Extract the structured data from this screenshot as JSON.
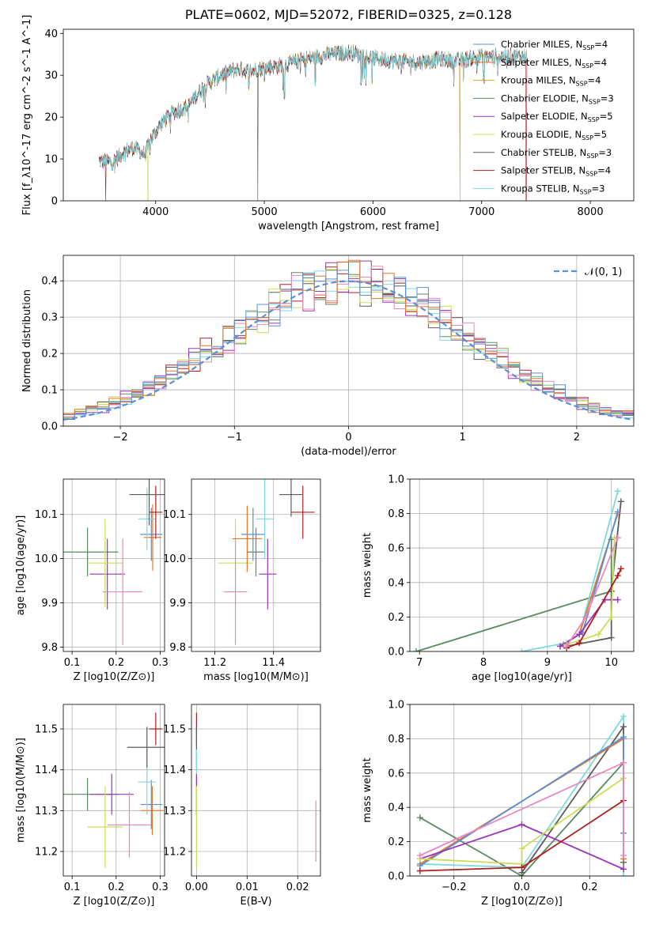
{
  "colors": [
    "#5b8fd6",
    "#e8762a",
    "#d4a418",
    "#5a8a62",
    "#9b35b8",
    "#ccdd55",
    "#5c5c5c",
    "#b01e1e",
    "#7bd9e0",
    "#e888c0",
    "#8c4a2e"
  ],
  "chart_data": [
    {
      "id": "spectrum",
      "type": "line",
      "title": "PLATE=0602, MJD=52072, FIBERID=0325, z=0.128",
      "xlabel": "wavelength [Angstrom, rest frame]",
      "ylabel": "Flux [f_λ10^-17 erg cm^-2 s^-1 A^-1]",
      "xlim": [
        3150,
        8400
      ],
      "ylim": [
        0,
        41
      ],
      "xticks": [
        "4000",
        "5000",
        "6000",
        "7000",
        "8000"
      ],
      "yticks": [
        "0",
        "10",
        "20",
        "30",
        "40"
      ],
      "legend_position": "top-right",
      "series": [
        {
          "name": "Chabrier MILES, N_SSP=4"
        },
        {
          "name": "Salpeter MILES, N_SSP=4"
        },
        {
          "name": "Kroupa MILES, N_SSP=4"
        },
        {
          "name": "Chabrier ELODIE, N_SSP=3"
        },
        {
          "name": "Salpeter ELODIE, N_SSP=5"
        },
        {
          "name": "Kroupa ELODIE, N_SSP=5"
        },
        {
          "name": "Chabrier STELIB, N_SSP=3"
        },
        {
          "name": "Salpeter STELIB, N_SSP=4"
        },
        {
          "name": "Kroupa STELIB, N_SSP=3"
        }
      ],
      "continuum_knots": [
        [
          3480,
          9.5
        ],
        [
          3600,
          9.2
        ],
        [
          3700,
          11.5
        ],
        [
          3800,
          12.8
        ],
        [
          3900,
          11
        ],
        [
          3950,
          14.5
        ],
        [
          4050,
          18.5
        ],
        [
          4150,
          21
        ],
        [
          4300,
          22.5
        ],
        [
          4350,
          24.5
        ],
        [
          4450,
          27.5
        ],
        [
          4600,
          30
        ],
        [
          4750,
          31.5
        ],
        [
          4850,
          31
        ],
        [
          5000,
          31.8
        ],
        [
          5200,
          32.5
        ],
        [
          5400,
          34
        ],
        [
          5600,
          35
        ],
        [
          5800,
          35.5
        ],
        [
          6000,
          34
        ],
        [
          6200,
          33.5
        ],
        [
          6400,
          33
        ],
        [
          6600,
          33.8
        ],
        [
          6800,
          33.5
        ],
        [
          7000,
          34.5
        ],
        [
          7200,
          34.5
        ],
        [
          7400,
          34.5
        ]
      ],
      "features": [
        {
          "x": 3540,
          "drop_to": 0,
          "series": 7
        },
        {
          "x": 3930,
          "drop_to": 0,
          "series": 5
        },
        {
          "x": 4940,
          "drop_to": 0,
          "series": 6
        },
        {
          "x": 5185,
          "drop_to": 24
        },
        {
          "x": 5890,
          "drop_to": 28
        },
        {
          "x": 6800,
          "drop_to": 0,
          "series": 2
        },
        {
          "x": 7410,
          "drop_to": 0,
          "series": 7
        },
        {
          "x": 7020,
          "drop_to": 28
        }
      ]
    },
    {
      "id": "residual-hist",
      "type": "histogram",
      "xlabel": "(data-model)/error",
      "ylabel": "Normed distribution",
      "xlim": [
        -2.5,
        2.5
      ],
      "ylim": [
        0,
        0.47
      ],
      "xticks": [
        "−2",
        "−1",
        "0",
        "1",
        "2"
      ],
      "yticks": [
        "0.0",
        "0.1",
        "0.2",
        "0.3",
        "0.4"
      ],
      "legend": "𝒩(0, 1)",
      "legend_position": "top-right",
      "bin_width": 0.1,
      "bin_start": -2.5
    },
    {
      "id": "age-vs-Z",
      "type": "errorbar",
      "xlabel": "Z [log10(Z/Z⊙)]",
      "ylabel": "age [log10(age/yr)]",
      "xlim": [
        0.08,
        0.31
      ],
      "ylim": [
        9.79,
        10.18
      ],
      "xticks": [
        "0.1",
        "0.2",
        "0.3"
      ],
      "yticks": [
        "9.8",
        "9.9",
        "10.0",
        "10.1"
      ],
      "points": [
        {
          "x": 0.135,
          "y": 10.015,
          "xerr": 0.07,
          "yerr": 0.055,
          "c": 3
        },
        {
          "x": 0.18,
          "y": 9.965,
          "xerr": 0.04,
          "yerr": 0.08,
          "c": 4
        },
        {
          "x": 0.175,
          "y": 9.99,
          "xerr": 0.04,
          "yerr": 0.1,
          "c": 5
        },
        {
          "x": 0.215,
          "y": 9.925,
          "xerr": 0.045,
          "yerr": 0.12,
          "c": 9
        },
        {
          "x": 0.283,
          "y": 10.048,
          "xerr": 0.02,
          "yerr": 0.075,
          "c": 1
        },
        {
          "x": 0.28,
          "y": 10.055,
          "xerr": 0.025,
          "yerr": 0.06,
          "c": 0
        },
        {
          "x": 0.27,
          "y": 10.09,
          "xerr": 0.02,
          "yerr": 0.07,
          "c": 8
        },
        {
          "x": 0.29,
          "y": 10.105,
          "xerr": 0.015,
          "yerr": 0.06,
          "c": 7
        },
        {
          "x": 0.275,
          "y": 10.145,
          "xerr": 0.045,
          "yerr": 0.07,
          "c": 6
        }
      ]
    },
    {
      "id": "age-vs-mass",
      "type": "errorbar",
      "xlabel": "mass [log10(M/M⊙)]",
      "ylabel": "",
      "xlim": [
        11.12,
        11.56
      ],
      "ylim": [
        9.79,
        10.18
      ],
      "xticks": [
        "11.2",
        "11.4"
      ],
      "yticks": [
        "9.8",
        "9.9",
        "10.0",
        "10.1"
      ],
      "points": [
        {
          "x": 11.27,
          "y": 9.99,
          "xerr": 0.06,
          "yerr": 0.1,
          "c": 5
        },
        {
          "x": 11.27,
          "y": 9.925,
          "xerr": 0.04,
          "yerr": 0.12,
          "c": 9
        },
        {
          "x": 11.34,
          "y": 10.015,
          "xerr": 0.03,
          "yerr": 0.055,
          "c": 3
        },
        {
          "x": 11.38,
          "y": 9.965,
          "xerr": 0.03,
          "yerr": 0.08,
          "c": 4
        },
        {
          "x": 11.31,
          "y": 10.045,
          "xerr": 0.05,
          "yerr": 0.075,
          "c": 1
        },
        {
          "x": 11.33,
          "y": 10.055,
          "xerr": 0.04,
          "yerr": 0.06,
          "c": 0
        },
        {
          "x": 11.37,
          "y": 10.09,
          "xerr": 0.03,
          "yerr": 0.09,
          "c": 8
        },
        {
          "x": 11.5,
          "y": 10.105,
          "xerr": 0.04,
          "yerr": 0.06,
          "c": 7
        },
        {
          "x": 11.46,
          "y": 10.145,
          "xerr": 0.04,
          "yerr": 0.05,
          "c": 6
        }
      ]
    },
    {
      "id": "mass-weight-vs-age",
      "type": "line",
      "xlabel": "age [log10(age/yr)]",
      "ylabel": "mass weight",
      "xlim": [
        6.85,
        10.35
      ],
      "ylim": [
        0,
        1
      ],
      "xticks": [
        "7",
        "8",
        "9",
        "10"
      ],
      "yticks": [
        "0.0",
        "0.2",
        "0.4",
        "0.6",
        "0.8",
        "1.0"
      ],
      "series": [
        {
          "c": 3,
          "points": [
            [
              6.95,
              0.0
            ],
            [
              10.0,
              0.35
            ],
            [
              10.0,
              0.65
            ]
          ]
        },
        {
          "c": 8,
          "points": [
            [
              8.6,
              0.0
            ],
            [
              9.3,
              0.05
            ],
            [
              9.5,
              0.1
            ],
            [
              10.1,
              0.93
            ]
          ]
        },
        {
          "c": 6,
          "points": [
            [
              9.3,
              0.03
            ],
            [
              10.0,
              0.08
            ],
            [
              10.0,
              0.35
            ],
            [
              10.15,
              0.87
            ]
          ]
        },
        {
          "c": 1,
          "points": [
            [
              9.2,
              0.03
            ],
            [
              9.5,
              0.1
            ],
            [
              10.1,
              0.8
            ]
          ]
        },
        {
          "c": 0,
          "points": [
            [
              9.25,
              0.04
            ],
            [
              9.55,
              0.11
            ],
            [
              10.1,
              0.81
            ]
          ]
        },
        {
          "c": 4,
          "points": [
            [
              9.2,
              0.03
            ],
            [
              9.5,
              0.1
            ],
            [
              9.9,
              0.3
            ],
            [
              10.1,
              0.3
            ]
          ]
        },
        {
          "c": 5,
          "points": [
            [
              9.3,
              0.04
            ],
            [
              9.8,
              0.1
            ],
            [
              10.0,
              0.2
            ],
            [
              10.05,
              0.66
            ]
          ]
        },
        {
          "c": 7,
          "points": [
            [
              9.3,
              0.02
            ],
            [
              9.5,
              0.05
            ],
            [
              10.1,
              0.44
            ],
            [
              10.15,
              0.48
            ]
          ]
        },
        {
          "c": 9,
          "points": [
            [
              9.3,
              0.03
            ],
            [
              9.6,
              0.2
            ],
            [
              10.1,
              0.66
            ]
          ]
        }
      ]
    },
    {
      "id": "mass-vs-Z",
      "type": "errorbar",
      "xlabel": "Z [log10(Z/Z⊙)]",
      "ylabel": "mass [log10(M/M⊙)]",
      "xlim": [
        0.08,
        0.31
      ],
      "ylim": [
        11.14,
        11.56
      ],
      "xticks": [
        "0.1",
        "0.2",
        "0.3"
      ],
      "yticks": [
        "11.2",
        "11.3",
        "11.4",
        "11.5"
      ],
      "points": [
        {
          "x": 0.135,
          "y": 11.34,
          "xerr": 0.07,
          "yerr": 0.04,
          "c": 3
        },
        {
          "x": 0.19,
          "y": 11.34,
          "xerr": 0.05,
          "yerr": 0.05,
          "c": 4
        },
        {
          "x": 0.175,
          "y": 11.26,
          "xerr": 0.04,
          "yerr": 0.1,
          "c": 5
        },
        {
          "x": 0.23,
          "y": 11.265,
          "xerr": 0.05,
          "yerr": 0.08,
          "c": 9
        },
        {
          "x": 0.282,
          "y": 11.3,
          "xerr": 0.025,
          "yerr": 0.06,
          "c": 1
        },
        {
          "x": 0.28,
          "y": 11.315,
          "xerr": 0.025,
          "yerr": 0.06,
          "c": 0
        },
        {
          "x": 0.27,
          "y": 11.37,
          "xerr": 0.02,
          "yerr": 0.08,
          "c": 8
        },
        {
          "x": 0.29,
          "y": 11.5,
          "xerr": 0.015,
          "yerr": 0.04,
          "c": 7
        },
        {
          "x": 0.27,
          "y": 11.455,
          "xerr": 0.045,
          "yerr": 0.05,
          "c": 6
        }
      ]
    },
    {
      "id": "mass-vs-ebv",
      "type": "errorbar",
      "xlabel": "E(B-V)",
      "ylabel": "",
      "xlim": [
        -0.001,
        0.0245
      ],
      "ylim": [
        11.14,
        11.56
      ],
      "xticks": [
        "0.00",
        "0.01",
        "0.02"
      ],
      "yticks": [
        "11.2",
        "11.3",
        "11.4",
        "11.5"
      ],
      "points": [
        {
          "x": 0.0,
          "y": 11.5,
          "xerr": 0.0,
          "yerr": 0.04,
          "c": 7
        },
        {
          "x": 0.0,
          "y": 11.455,
          "xerr": 0.0,
          "yerr": 0.05,
          "c": 6
        },
        {
          "x": 0.0,
          "y": 11.37,
          "xerr": 0.0,
          "yerr": 0.08,
          "c": 8
        },
        {
          "x": 0.0,
          "y": 11.34,
          "xerr": 0.0,
          "yerr": 0.05,
          "c": 4
        },
        {
          "x": 0.0,
          "y": 11.26,
          "xerr": 0.0,
          "yerr": 0.1,
          "c": 5
        },
        {
          "x": 0.0236,
          "y": 11.25,
          "xerr": 0.0,
          "yerr": 0.075,
          "c": 9
        }
      ]
    },
    {
      "id": "mass-weight-vs-Z",
      "type": "line",
      "xlabel": "Z [log10(Z/Z⊙)]",
      "ylabel": "mass weight",
      "xlim": [
        -0.33,
        0.33
      ],
      "ylim": [
        0,
        1
      ],
      "xticks": [
        "−0.2",
        "0.0",
        "0.2"
      ],
      "yticks": [
        "0.0",
        "0.2",
        "0.4",
        "0.6",
        "0.8",
        "1.0"
      ],
      "series": [
        {
          "c": 3,
          "points": [
            [
              -0.3,
              0.34
            ],
            [
              0.0,
              0.0
            ],
            [
              0.3,
              0.66
            ]
          ]
        },
        {
          "c": 8,
          "points": [
            [
              -0.3,
              0.07
            ],
            [
              0.0,
              0.05
            ],
            [
              0.3,
              0.93
            ],
            [
              0.3,
              0.0
            ]
          ]
        },
        {
          "c": 6,
          "points": [
            [
              0.0,
              0.02
            ],
            [
              0.3,
              0.87
            ],
            [
              0.3,
              0.08
            ]
          ]
        },
        {
          "c": 1,
          "points": [
            [
              -0.3,
              0.07
            ],
            [
              0.3,
              0.8
            ],
            [
              0.3,
              0.1
            ]
          ]
        },
        {
          "c": 0,
          "points": [
            [
              -0.3,
              0.06
            ],
            [
              0.3,
              0.81
            ],
            [
              0.3,
              0.25
            ]
          ]
        },
        {
          "c": 4,
          "points": [
            [
              -0.3,
              0.1
            ],
            [
              0.0,
              0.3
            ],
            [
              0.3,
              0.04
            ]
          ]
        },
        {
          "c": 5,
          "points": [
            [
              -0.3,
              0.1
            ],
            [
              0.0,
              0.07
            ],
            [
              0.0,
              0.16
            ],
            [
              0.3,
              0.57
            ]
          ]
        },
        {
          "c": 7,
          "points": [
            [
              -0.3,
              0.03
            ],
            [
              0.0,
              0.05
            ],
            [
              0.3,
              0.44
            ]
          ]
        },
        {
          "c": 9,
          "points": [
            [
              -0.3,
              0.12
            ],
            [
              0.3,
              0.66
            ],
            [
              0.3,
              0.12
            ]
          ]
        }
      ]
    }
  ]
}
